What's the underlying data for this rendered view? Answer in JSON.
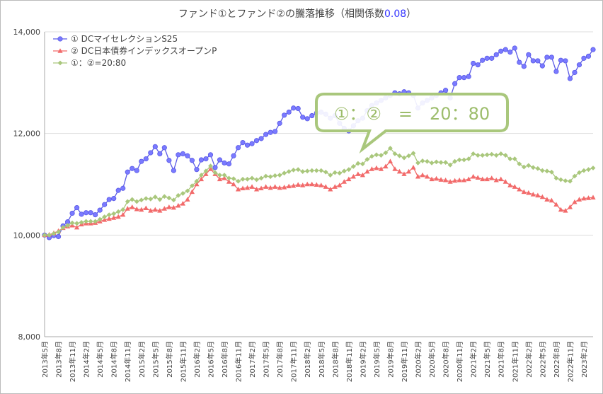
{
  "chart_data": {
    "type": "line",
    "title": "ファンド①とファンド②の騰落推移（相関係数",
    "title_value": "0.08",
    "title_end": "）",
    "annotation": "①：②　=　20：80",
    "categories": [
      "2013年5月",
      null,
      null,
      "2013年8月",
      null,
      null,
      "2013年11月",
      null,
      null,
      "2014年2月",
      null,
      null,
      "2014年5月",
      null,
      null,
      "2014年8月",
      null,
      null,
      "2014年11月",
      null,
      null,
      "2015年2月",
      null,
      null,
      "2015年5月",
      null,
      null,
      "2015年8月",
      null,
      null,
      "2015年11月",
      null,
      null,
      "2016年2月",
      null,
      null,
      "2016年5月",
      null,
      null,
      "2016年8月",
      null,
      null,
      "2016年11月",
      null,
      null,
      "2017年2月",
      null,
      null,
      "2017年5月",
      null,
      null,
      "2017年8月",
      null,
      null,
      "2017年11月",
      null,
      null,
      "2018年2月",
      null,
      null,
      "2018年5月",
      null,
      null,
      "2018年8月",
      null,
      null,
      "2018年11月",
      null,
      null,
      "2019年2月",
      null,
      null,
      "2019年5月",
      null,
      null,
      "2019年8月",
      null,
      null,
      "2019年11月",
      null,
      null,
      "2020年2月",
      null,
      null,
      "2020年5月",
      null,
      null,
      "2020年8月",
      null,
      null,
      "2020年11月",
      null,
      null,
      "2021年2月",
      null,
      null,
      "2021年5月",
      null,
      null,
      "2021年8月",
      null,
      null,
      "2021年11月",
      null,
      null,
      "2022年2月",
      null,
      null,
      "2022年5月",
      null,
      null,
      "2022年8月",
      null,
      null,
      "2022年11月",
      null,
      null,
      "2023年2月",
      null,
      null
    ],
    "series": [
      {
        "name": "① DCマイセレクションS25",
        "color": "#5a5ae6",
        "marker": "circle",
        "values": [
          10000,
          9950,
          9990,
          9970,
          10180,
          10260,
          10430,
          10540,
          10410,
          10440,
          10440,
          10400,
          10490,
          10600,
          10700,
          10720,
          10880,
          10920,
          11240,
          11310,
          11270,
          11450,
          11500,
          11620,
          11740,
          11600,
          11720,
          11470,
          11270,
          11580,
          11600,
          11560,
          11470,
          11290,
          11480,
          11500,
          11580,
          11330,
          11480,
          11420,
          11400,
          11560,
          11720,
          11820,
          11770,
          11800,
          11860,
          11900,
          11980,
          12020,
          12040,
          12200,
          12360,
          12420,
          12500,
          12490,
          12320,
          12290,
          12350,
          12400,
          12420,
          12380,
          12300,
          12350,
          12200,
          12100,
          12050,
          12150,
          12250,
          12300,
          12450,
          12550,
          12600,
          12650,
          12700,
          12750,
          12800,
          12780,
          12820,
          12800,
          12750,
          12500,
          12600,
          12650,
          12700,
          12750,
          12800,
          12850,
          12700,
          12980,
          13100,
          13100,
          13120,
          13380,
          13350,
          13440,
          13480,
          13480,
          13550,
          13620,
          13650,
          13600,
          13680,
          13400,
          13320,
          13550,
          13430,
          13430,
          13330,
          13500,
          13500,
          13220,
          13440,
          13430,
          13080,
          13200,
          13350,
          13480,
          13520,
          13650
        ]
      },
      {
        "name": "② DC日本債券インデックスオープンP",
        "color": "#f26b6b",
        "marker": "triangle",
        "values": [
          10000,
          10010,
          10040,
          10080,
          10140,
          10170,
          10190,
          10150,
          10210,
          10230,
          10230,
          10240,
          10270,
          10300,
          10320,
          10340,
          10360,
          10400,
          10520,
          10550,
          10510,
          10500,
          10530,
          10480,
          10500,
          10480,
          10520,
          10550,
          10540,
          10580,
          10620,
          10700,
          10850,
          11000,
          11100,
          11200,
          11300,
          11200,
          11100,
          11120,
          11050,
          11000,
          10900,
          10920,
          10930,
          10950,
          10900,
          10920,
          10950,
          10930,
          10950,
          10930,
          10940,
          10960,
          10970,
          10990,
          10980,
          11000,
          11000,
          10990,
          10980,
          10950,
          10900,
          10950,
          10980,
          11050,
          11100,
          11150,
          11200,
          11180,
          11250,
          11300,
          11320,
          11300,
          11350,
          11450,
          11300,
          11250,
          11200,
          11250,
          11330,
          11150,
          11180,
          11150,
          11100,
          11110,
          11090,
          11080,
          11050,
          11070,
          11080,
          11080,
          11100,
          11150,
          11130,
          11100,
          11100,
          11120,
          11080,
          11100,
          11050,
          10980,
          10950,
          10900,
          10850,
          10830,
          10800,
          10780,
          10750,
          10700,
          10680,
          10600,
          10500,
          10480,
          10550,
          10650,
          10700,
          10720,
          10730,
          10740
        ]
      },
      {
        "name": "①：②=20:80",
        "color": "#a9c77c",
        "marker": "diamond",
        "values": [
          10000,
          10000,
          10030,
          10060,
          10150,
          10190,
          10240,
          10230,
          10250,
          10270,
          10270,
          10270,
          10310,
          10360,
          10400,
          10420,
          10460,
          10500,
          10660,
          10700,
          10660,
          10690,
          10720,
          10710,
          10750,
          10700,
          10760,
          10730,
          10690,
          10780,
          10820,
          10870,
          10970,
          11060,
          11180,
          11260,
          11360,
          11230,
          11180,
          11180,
          11120,
          11110,
          11060,
          11100,
          11100,
          11120,
          11090,
          11120,
          11160,
          11150,
          11170,
          11180,
          11220,
          11250,
          11280,
          11290,
          11250,
          11260,
          11270,
          11270,
          11270,
          11240,
          11180,
          11230,
          11220,
          11260,
          11290,
          11350,
          11410,
          11400,
          11490,
          11550,
          11580,
          11570,
          11620,
          11710,
          11600,
          11560,
          11520,
          11560,
          11610,
          11420,
          11460,
          11450,
          11420,
          11440,
          11430,
          11430,
          11380,
          11450,
          11480,
          11480,
          11500,
          11600,
          11570,
          11570,
          11580,
          11590,
          11570,
          11600,
          11570,
          11500,
          11500,
          11400,
          11340,
          11370,
          11330,
          11310,
          11270,
          11260,
          11240,
          11120,
          11090,
          11070,
          11060,
          11160,
          11230,
          11270,
          11290,
          11320
        ]
      }
    ],
    "ylim": [
      8000,
      14000
    ],
    "yticks": [
      {
        "value": 8000,
        "label": "8,000"
      },
      {
        "value": 10000,
        "label": "10,000"
      },
      {
        "value": 12000,
        "label": "12,000"
      },
      {
        "value": 14000,
        "label": "14,000"
      }
    ],
    "grid": true,
    "legend": "upper left"
  }
}
